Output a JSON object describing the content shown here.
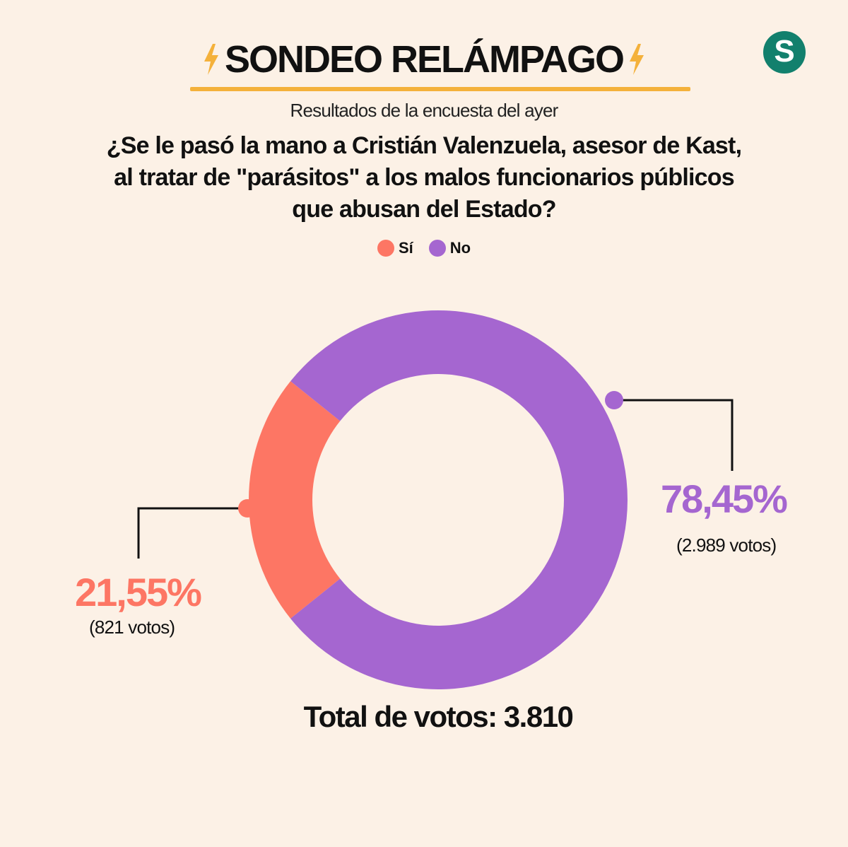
{
  "header": {
    "title": "SONDEO RELÁMPAGO",
    "logo_letter": "S",
    "subtitle": "Resultados de la encuesta del ayer",
    "question": "¿Se le pasó la mano a Cristián Valenzuela, asesor de Kast, al tratar de \"parásitos\" a los malos funcionarios públicos que abusan del Estado?"
  },
  "colors": {
    "background": "#fcf1e6",
    "accent": "#f4b13b",
    "logo": "#12806d",
    "si": "#fd7664",
    "no": "#a566d0"
  },
  "legend": [
    {
      "label": "Sí",
      "color": "#fd7664"
    },
    {
      "label": "No",
      "color": "#a566d0"
    }
  ],
  "chart_data": {
    "type": "pie",
    "donut": true,
    "slices": [
      {
        "label": "Sí",
        "value": 21.55,
        "percent_label": "21,55%",
        "votes_label": "(821 votos)",
        "votes": 821,
        "color": "#fd7664"
      },
      {
        "label": "No",
        "value": 78.45,
        "percent_label": "78,45%",
        "votes_label": "(2.989 votos)",
        "votes": 2989,
        "color": "#a566d0"
      }
    ],
    "total_label": "Total de votos: 3.810",
    "total": 3810
  },
  "icons": [
    "lightning-bolt-icon",
    "logo-icon"
  ]
}
